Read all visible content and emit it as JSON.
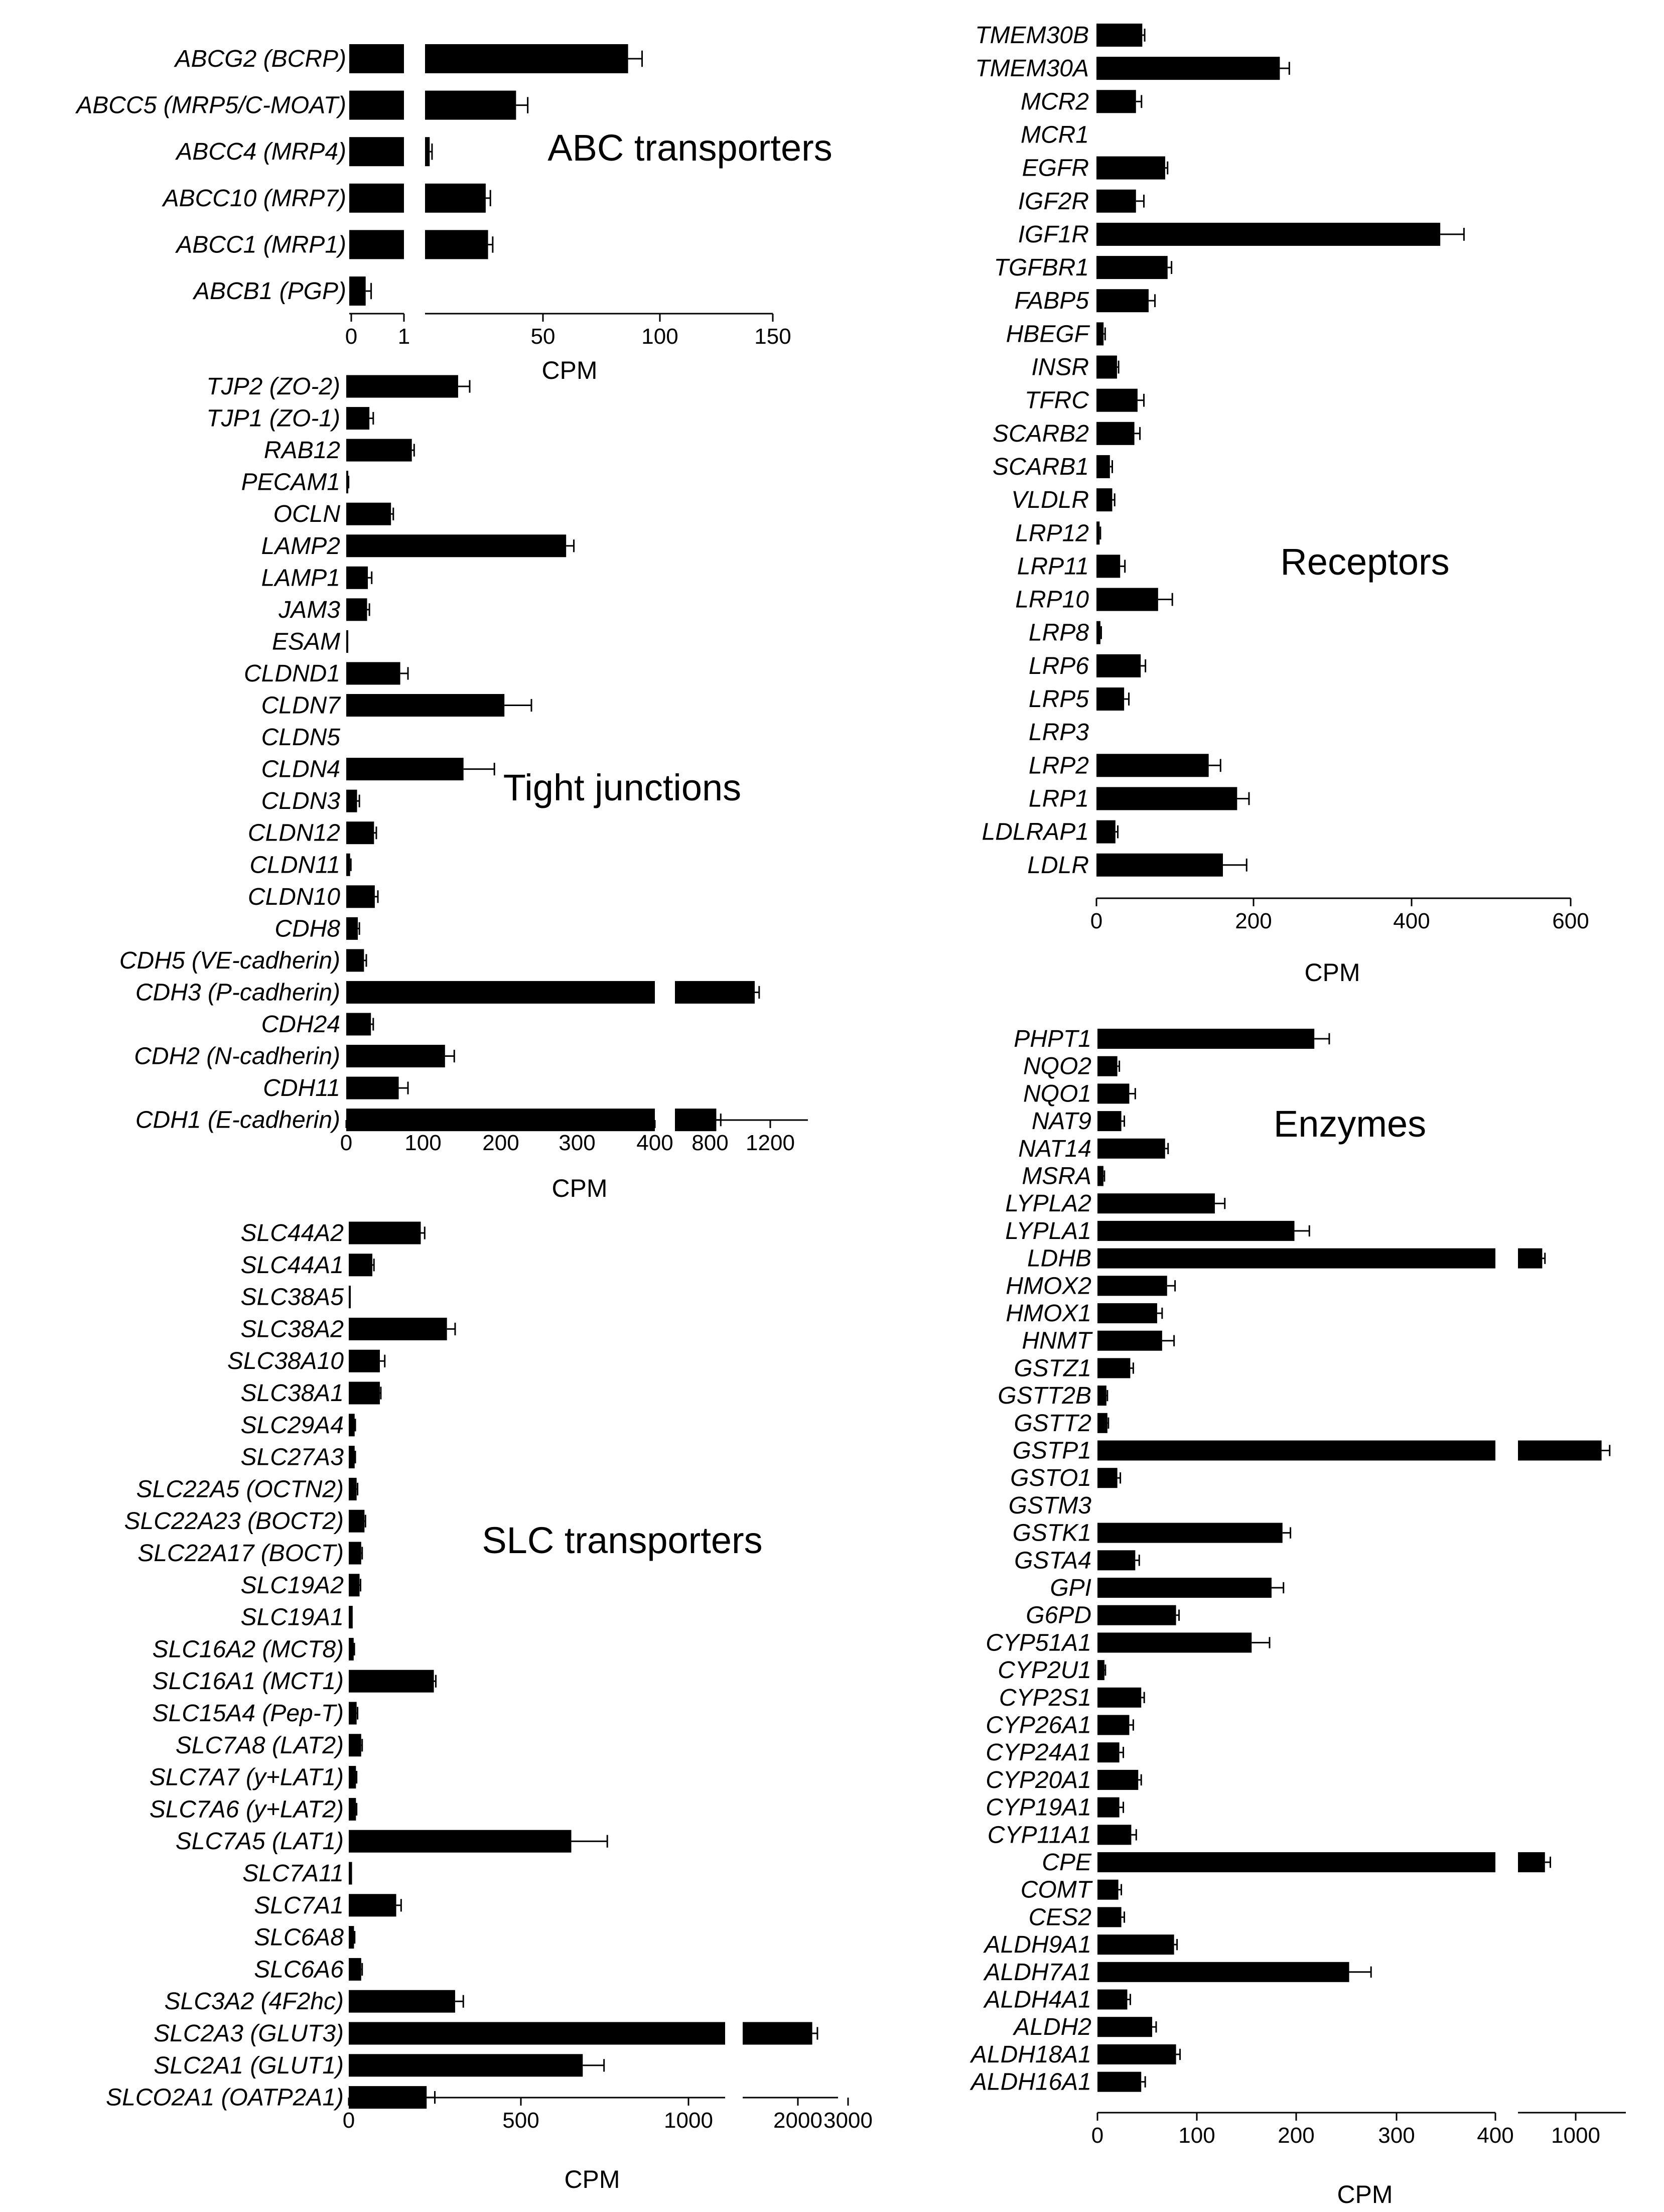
{
  "chart_data": [
    {
      "type": "bar",
      "orientation": "horizontal",
      "title": "ABC transporters",
      "xlabel": "CPM",
      "broken_axis": true,
      "axis_segments": [
        [
          0,
          1
        ],
        [
          1,
          150
        ]
      ],
      "xticks": [
        "0",
        "1",
        "50",
        "100",
        "150"
      ],
      "categories": [
        "ABCG2 (BCRP)",
        "ABCC5 (MRP5/C-MOAT)",
        "ABCC4 (MRP4)",
        "ABCC10 (MRP7)",
        "ABCC1 (MRP1)",
        "ABCB1 (PGP)"
      ],
      "values": [
        88,
        40,
        3,
        27,
        28,
        0.3
      ],
      "errors": [
        6,
        5,
        1,
        2,
        2,
        0.1
      ]
    },
    {
      "type": "bar",
      "orientation": "horizontal",
      "title": "Tight junctions",
      "xlabel": "CPM",
      "broken_axis": true,
      "axis_segments": [
        [
          0,
          400
        ],
        [
          400,
          1300
        ]
      ],
      "xticks": [
        "0",
        "100",
        "200",
        "300",
        "400",
        "800",
        "1200"
      ],
      "categories": [
        "TJP2 (ZO-2)",
        "TJP1 (ZO-1)",
        "RAB12",
        "PECAM1",
        "OCLN",
        "LAMP2",
        "LAMP1",
        "JAM3",
        "ESAM",
        "CLDND1",
        "CLDN7",
        "CLDN5",
        "CLDN4",
        "CLDN3",
        "CLDN12",
        "CLDN11",
        "CLDN10",
        "CDH8",
        "CDH5 (VE-cadherin)",
        "CDH3 (P-cadherin)",
        "CDH24",
        "CDH2 (N-cadherin)",
        "CDH11",
        "CDH1 (E-cadherin)"
      ],
      "values": [
        145,
        30,
        85,
        2,
        58,
        285,
        28,
        27,
        1,
        70,
        205,
        0,
        152,
        14,
        36,
        5,
        37,
        15,
        23,
        940,
        32,
        128,
        68,
        680
      ],
      "errors": [
        15,
        5,
        3,
        1,
        3,
        10,
        5,
        3,
        0.5,
        10,
        35,
        0,
        40,
        3,
        3,
        1,
        4,
        2,
        3,
        30,
        3,
        12,
        12,
        30
      ]
    },
    {
      "type": "bar",
      "orientation": "horizontal",
      "title": "SLC transporters",
      "xlabel": "CPM",
      "broken_axis": true,
      "axis_segments": [
        [
          0,
          1150
        ],
        [
          1150,
          3000
        ]
      ],
      "xticks": [
        "0",
        "500",
        "1000",
        "2000",
        "3000"
      ],
      "categories": [
        "SLC44A2",
        "SLC44A1",
        "SLC38A5",
        "SLC38A2",
        "SLC38A10",
        "SLC38A1",
        "SLC29A4",
        "SLC27A3",
        "SLC22A5 (OCTN2)",
        "SLC22A23 (BOCT2)",
        "SLC22A17 (BOCT)",
        "SLC19A2",
        "SLC19A1",
        "SLC16A2 (MCT8)",
        "SLC16A1 (MCT1)",
        "SLC15A4 (Pep-T)",
        "SLC7A8 (LAT2)",
        "SLC7A7 (y+LAT1)",
        "SLC7A6 (y+LAT2)",
        "SLC7A5 (LAT1)",
        "SLC7A11",
        "SLC7A1",
        "SLC6A8",
        "SLC6A6",
        "SLC3A2 (4F2hc)",
        "SLC2A3 (GLUT3)",
        "SLC2A1 (GLUT1)",
        "SLCO2A1 (OATP2A1)"
      ],
      "values": [
        220,
        72,
        2,
        300,
        95,
        95,
        18,
        18,
        24,
        48,
        38,
        33,
        12,
        15,
        260,
        24,
        38,
        22,
        22,
        680,
        10,
        145,
        16,
        38,
        325,
        2500,
        715,
        238
      ],
      "errors": [
        12,
        5,
        1,
        25,
        15,
        3,
        2,
        2,
        3,
        3,
        3,
        3,
        1,
        2,
        6,
        3,
        3,
        2,
        2,
        110,
        1,
        15,
        2,
        3,
        25,
        100,
        65,
        25
      ]
    },
    {
      "type": "bar",
      "orientation": "horizontal",
      "title": "Receptors",
      "xlabel": "CPM",
      "broken_axis": false,
      "xlim": [
        0,
        600
      ],
      "xticks": [
        "0",
        "200",
        "400",
        "600"
      ],
      "categories": [
        "TMEM30B",
        "TMEM30A",
        "MCR2",
        "MCR1",
        "EGFR",
        "IGF2R",
        "IGF1R",
        "TGFBR1",
        "FABP5",
        "HBEGF",
        "INSR",
        "TFRC",
        "SCARB2",
        "SCARB1",
        "VLDLR",
        "LRP12",
        "LRP11",
        "LRP10",
        "LRP8",
        "LRP6",
        "LRP5",
        "LRP3",
        "LRP2",
        "LRP1",
        "LDLRAP1",
        "LDLR"
      ],
      "values": [
        58,
        232,
        50,
        0,
        87,
        50,
        435,
        90,
        66,
        9,
        26,
        52,
        48,
        17,
        20,
        4,
        30,
        78,
        5,
        56,
        35,
        0,
        142,
        178,
        24,
        160
      ],
      "errors": [
        3,
        12,
        7,
        0,
        3,
        10,
        30,
        5,
        8,
        2,
        2,
        8,
        7,
        3,
        3,
        1,
        6,
        18,
        1,
        6,
        6,
        0,
        15,
        15,
        3,
        30
      ]
    },
    {
      "type": "bar",
      "orientation": "horizontal",
      "title": "Enzymes",
      "xlabel": "CPM",
      "broken_axis": true,
      "axis_segments": [
        [
          0,
          400
        ],
        [
          400,
          1200
        ]
      ],
      "xticks": [
        "0",
        "100",
        "200",
        "300",
        "400",
        "1000"
      ],
      "categories": [
        "PHPT1",
        "NQO2",
        "NQO1",
        "NAT9",
        "NAT14",
        "MSRA",
        "LYPLA2",
        "LYPLA1",
        "LDHB",
        "HMOX2",
        "HMOX1",
        "HNMT",
        "GSTZ1",
        "GSTT2B",
        "GSTT2",
        "GSTP1",
        "GSTO1",
        "GSTM3",
        "GSTK1",
        "GSTA4",
        "GPI",
        "G6PD",
        "CYP51A1",
        "CYP2U1",
        "CYP2S1",
        "CYP26A1",
        "CYP24A1",
        "CYP20A1",
        "CYP19A1",
        "CYP11A1",
        "CPE",
        "COMT",
        "CES2",
        "ALDH9A1",
        "ALDH7A1",
        "ALDH4A1",
        "ALDH2",
        "ALDH18A1",
        "ALDH16A1"
      ],
      "values": [
        218,
        20,
        32,
        24,
        68,
        6,
        118,
        198,
        580,
        70,
        60,
        65,
        33,
        9,
        10,
        1020,
        20,
        0,
        186,
        38,
        175,
        79,
        155,
        7,
        44,
        32,
        22,
        41,
        22,
        34,
        600,
        21,
        24,
        77,
        253,
        30,
        55,
        79,
        44
      ],
      "errors": [
        15,
        2,
        6,
        3,
        3,
        1,
        10,
        15,
        20,
        8,
        5,
        12,
        3,
        1,
        1,
        60,
        3,
        0,
        8,
        4,
        12,
        3,
        18,
        1,
        3,
        4,
        4,
        3,
        4,
        5,
        40,
        3,
        3,
        3,
        22,
        3,
        4,
        4,
        4
      ]
    }
  ]
}
